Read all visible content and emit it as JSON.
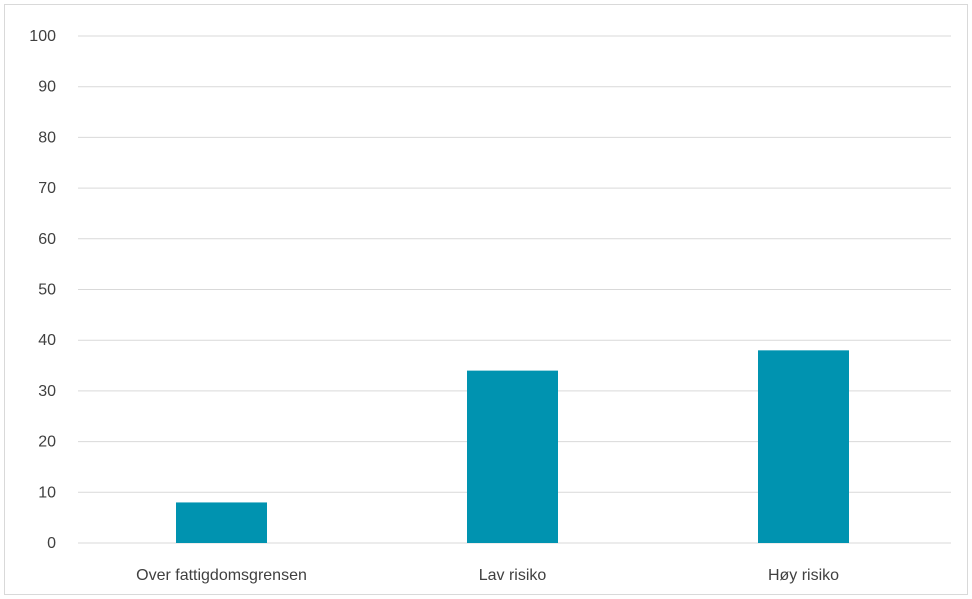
{
  "chart_data": {
    "type": "bar",
    "title": "",
    "xlabel": "",
    "ylabel": "",
    "categories": [
      "Over fattigdomsgrensen",
      "Lav risiko",
      "Høy risiko"
    ],
    "values": [
      8,
      34,
      38
    ],
    "ylim": [
      0,
      100
    ],
    "yticks": [
      0,
      10,
      20,
      30,
      40,
      50,
      60,
      70,
      80,
      90,
      100
    ],
    "grid": true,
    "legend": "none",
    "bar_color": "#0093B0",
    "grid_color": "#d9d9d9"
  }
}
